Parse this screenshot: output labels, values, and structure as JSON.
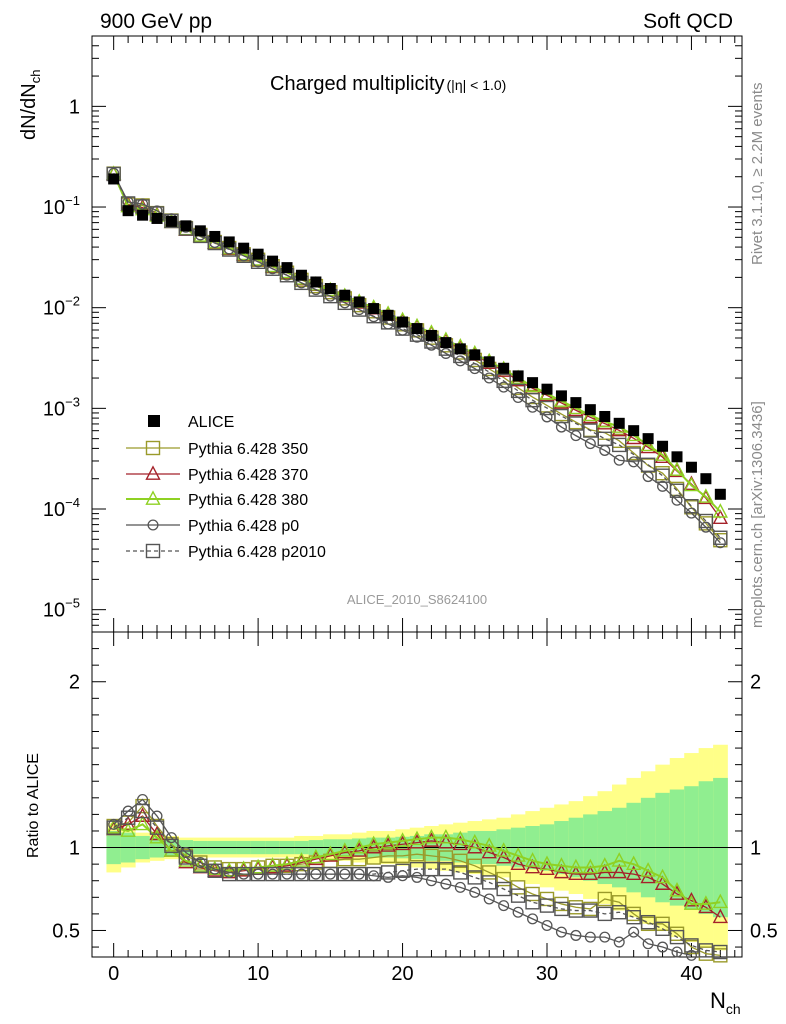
{
  "header": {
    "left": "900 GeV pp",
    "right": "Soft QCD"
  },
  "side": {
    "rivet": "Rivet 3.1.10, ≥ 2.2M events",
    "mcplots": "mcplots.cern.ch [arXiv:1306.3436]"
  },
  "chart_data": [
    {
      "type": "scatter",
      "title": "Charged multiplicity",
      "title_suffix": "(|η| < 1.0)",
      "ylabel": "dN/dN",
      "ylabel_sub": "ch",
      "y_scale": "log",
      "ylim": [
        6e-06,
        5
      ],
      "y_tick_labels": [
        "10",
        "10",
        "10",
        "10",
        "10",
        "1"
      ],
      "y_tick_exponents": [
        "−5",
        "−4",
        "−3",
        "−2",
        "−1",
        ""
      ],
      "analysis_label": "ALICE_2010_S8624100",
      "legend_position": "bottom-left",
      "data_series": "ALICE",
      "series": [
        {
          "name": "ALICE",
          "color": "#000000",
          "marker": "filled-square",
          "values": [
            0.19,
            0.092,
            0.083,
            0.077,
            0.072,
            0.065,
            0.058,
            0.051,
            0.045,
            0.039,
            0.034,
            0.029,
            0.025,
            0.021,
            0.018,
            0.0155,
            0.0133,
            0.0114,
            0.0098,
            0.0084,
            0.0072,
            0.0062,
            0.0053,
            0.0045,
            0.0039,
            0.0034,
            0.0029,
            0.0025,
            0.0021,
            0.0018,
            0.00155,
            0.00133,
            0.00114,
            0.00097,
            0.00083,
            0.00071,
            0.0006,
            0.0005,
            0.00042,
            0.00033,
            0.00026,
            0.0002,
            0.00014
          ]
        },
        {
          "name": "Pythia 6.428 350",
          "color": "#9a9a2a",
          "marker": "open-square"
        },
        {
          "name": "Pythia 6.428 370",
          "color": "#a5222a",
          "marker": "open-triangle"
        },
        {
          "name": "Pythia 6.428 380",
          "color": "#8fd123",
          "marker": "open-triangle"
        },
        {
          "name": "Pythia 6.428 p0",
          "color": "#555555",
          "marker": "open-circle"
        },
        {
          "name": "Pythia 6.428 p2010",
          "color": "#555555",
          "marker": "open-square",
          "dashed": true
        }
      ]
    },
    {
      "type": "line",
      "ylabel": "Ratio to ALICE",
      "xlabel": "N",
      "xlabel_sub": "ch",
      "xlim": [
        -1.5,
        43.5
      ],
      "ylim": [
        0.34,
        2.3
      ],
      "x_ticks": [
        0,
        10,
        20,
        30,
        40
      ],
      "y_ticks_left": [
        0.5,
        1,
        2
      ],
      "y_ticks_right": [
        0.5,
        1,
        2
      ],
      "x": [
        0,
        1,
        2,
        3,
        4,
        5,
        6,
        7,
        8,
        9,
        10,
        11,
        12,
        13,
        14,
        15,
        16,
        17,
        18,
        19,
        20,
        21,
        22,
        23,
        24,
        25,
        26,
        27,
        28,
        29,
        30,
        31,
        32,
        33,
        34,
        35,
        36,
        37,
        38,
        39,
        40,
        41,
        42
      ],
      "band_inner": [
        0.1,
        0.09,
        0.07,
        0.06,
        0.05,
        0.045,
        0.04,
        0.04,
        0.04,
        0.04,
        0.04,
        0.04,
        0.04,
        0.04,
        0.045,
        0.05,
        0.05,
        0.055,
        0.06,
        0.06,
        0.065,
        0.07,
        0.08,
        0.08,
        0.09,
        0.1,
        0.1,
        0.11,
        0.12,
        0.13,
        0.14,
        0.16,
        0.18,
        0.2,
        0.22,
        0.24,
        0.27,
        0.3,
        0.33,
        0.35,
        0.37,
        0.4,
        0.42
      ],
      "band_outer": [
        0.15,
        0.12,
        0.09,
        0.08,
        0.07,
        0.06,
        0.06,
        0.06,
        0.06,
        0.06,
        0.06,
        0.06,
        0.06,
        0.07,
        0.07,
        0.08,
        0.08,
        0.09,
        0.1,
        0.1,
        0.11,
        0.12,
        0.13,
        0.14,
        0.15,
        0.16,
        0.17,
        0.18,
        0.2,
        0.22,
        0.24,
        0.26,
        0.28,
        0.31,
        0.34,
        0.38,
        0.42,
        0.46,
        0.5,
        0.54,
        0.57,
        0.6,
        0.62
      ],
      "band_inner_color": "#90ee90",
      "band_outer_color": "#ffff88",
      "series": [
        {
          "name": "Pythia 6.428 350",
          "color": "#9a9a2a",
          "marker": "open-square",
          "values": [
            1.13,
            1.15,
            1.25,
            1.13,
            1.02,
            0.95,
            0.91,
            0.88,
            0.87,
            0.87,
            0.88,
            0.89,
            0.89,
            0.9,
            0.91,
            0.92,
            0.93,
            0.93,
            0.94,
            0.95,
            0.95,
            0.96,
            0.95,
            0.94,
            0.92,
            0.89,
            0.85,
            0.81,
            0.76,
            0.72,
            0.69,
            0.66,
            0.64,
            0.63,
            0.69,
            0.67,
            0.6,
            0.54,
            0.54,
            0.48,
            0.4,
            0.36,
            0.35
          ]
        },
        {
          "name": "Pythia 6.428 370",
          "color": "#a5222a",
          "marker": "open-triangle",
          "values": [
            1.11,
            1.14,
            1.19,
            1.08,
            0.98,
            0.91,
            0.88,
            0.86,
            0.85,
            0.86,
            0.87,
            0.88,
            0.89,
            0.91,
            0.93,
            0.95,
            0.97,
            0.98,
            1.0,
            1.01,
            1.02,
            1.03,
            1.04,
            1.03,
            1.02,
            1.0,
            0.97,
            0.94,
            0.9,
            0.88,
            0.87,
            0.85,
            0.84,
            0.84,
            0.85,
            0.85,
            0.84,
            0.82,
            0.78,
            0.72,
            0.68,
            0.64,
            0.58
          ]
        },
        {
          "name": "Pythia 6.428 380",
          "color": "#8fd123",
          "marker": "open-triangle",
          "values": [
            1.12,
            1.1,
            1.14,
            1.06,
            0.98,
            0.92,
            0.89,
            0.87,
            0.86,
            0.87,
            0.88,
            0.89,
            0.9,
            0.92,
            0.94,
            0.96,
            0.98,
            1.0,
            1.02,
            1.03,
            1.04,
            1.05,
            1.06,
            1.06,
            1.05,
            1.03,
            1.01,
            0.98,
            0.95,
            0.92,
            0.9,
            0.89,
            0.88,
            0.88,
            0.89,
            0.92,
            0.9,
            0.86,
            0.82,
            0.74,
            0.66,
            0.66,
            0.67
          ]
        },
        {
          "name": "Pythia 6.428 p0",
          "color": "#555555",
          "marker": "open-circle",
          "values": [
            1.14,
            1.22,
            1.29,
            1.19,
            1.06,
            0.97,
            0.91,
            0.87,
            0.85,
            0.84,
            0.84,
            0.84,
            0.84,
            0.84,
            0.84,
            0.84,
            0.84,
            0.84,
            0.83,
            0.82,
            0.83,
            0.82,
            0.8,
            0.78,
            0.76,
            0.73,
            0.69,
            0.65,
            0.61,
            0.57,
            0.53,
            0.49,
            0.47,
            0.46,
            0.46,
            0.43,
            0.49,
            0.42,
            0.4,
            0.37,
            0.35,
            0.33,
            0.33
          ]
        },
        {
          "name": "Pythia 6.428 p2010",
          "color": "#555555",
          "marker": "open-square",
          "dashed": true,
          "values": [
            1.12,
            1.18,
            1.22,
            1.12,
            1.01,
            0.94,
            0.89,
            0.86,
            0.84,
            0.84,
            0.84,
            0.84,
            0.84,
            0.84,
            0.84,
            0.84,
            0.84,
            0.84,
            0.84,
            0.85,
            0.86,
            0.87,
            0.87,
            0.87,
            0.85,
            0.82,
            0.79,
            0.75,
            0.71,
            0.67,
            0.65,
            0.63,
            0.62,
            0.62,
            0.6,
            0.61,
            0.58,
            0.55,
            0.51,
            0.46,
            0.41,
            0.38,
            0.37
          ]
        }
      ]
    }
  ]
}
